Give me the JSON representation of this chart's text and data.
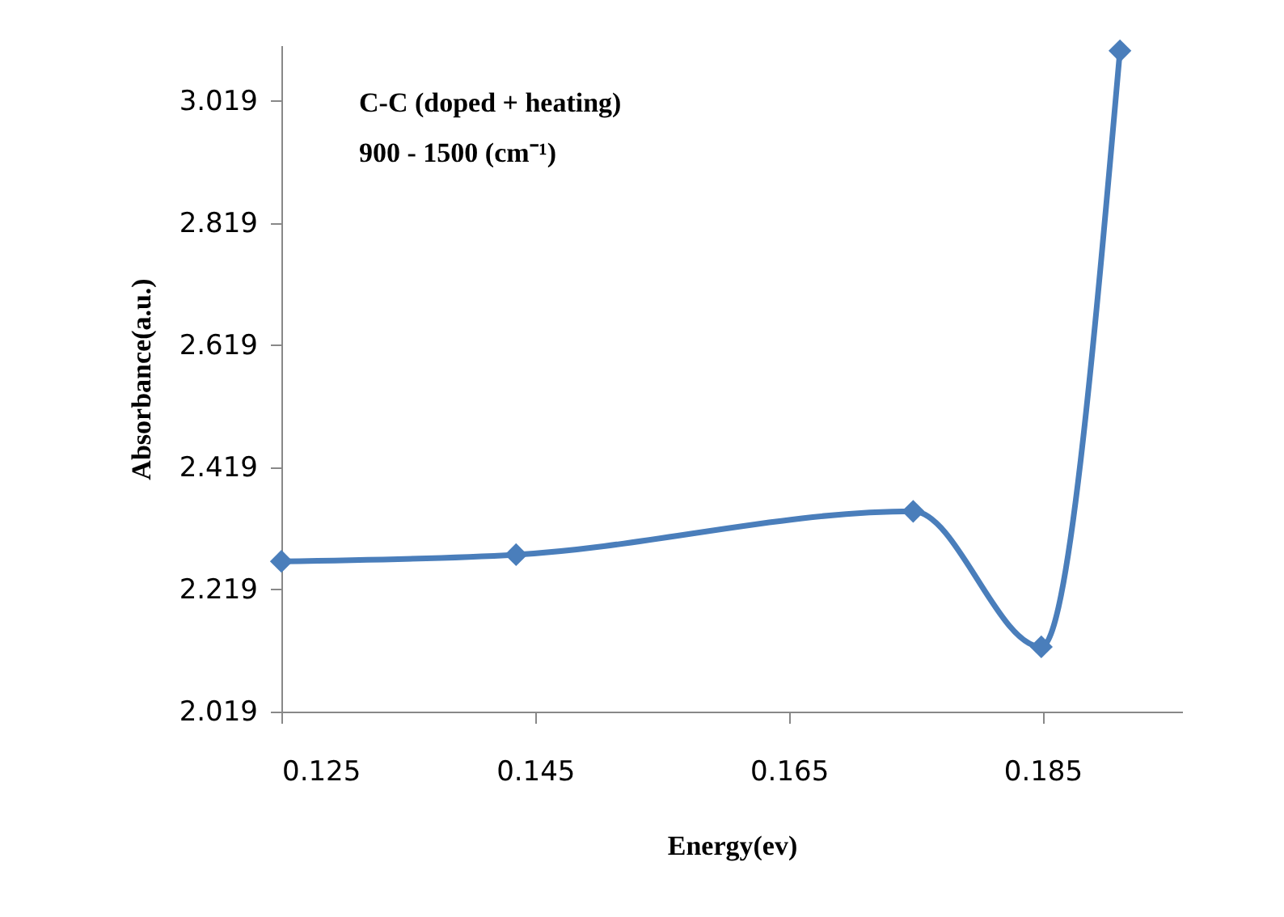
{
  "chart_data": {
    "type": "line",
    "xlabel": "Energy(ev)",
    "ylabel": "Absorbance(a.u.)",
    "annotations": [
      "C-C (doped + heating)",
      "900 - 1500 (cm⁻¹)"
    ],
    "x": [
      0.125,
      0.1435,
      0.1748,
      0.1849,
      0.1911
    ],
    "series": [
      {
        "color": "#4a7ebb",
        "values": [
          2.265,
          2.276,
          2.347,
          2.125,
          3.101
        ]
      }
    ],
    "xlim": [
      0.125,
      0.196
    ],
    "xticks": [
      0.125,
      0.145,
      0.165,
      0.185
    ],
    "ylim": [
      2.019,
      3.11
    ],
    "yticks": [
      2.019,
      2.219,
      2.419,
      2.619,
      2.819,
      3.019
    ],
    "grid": false,
    "marker": "diamond",
    "line_style": "solid"
  }
}
